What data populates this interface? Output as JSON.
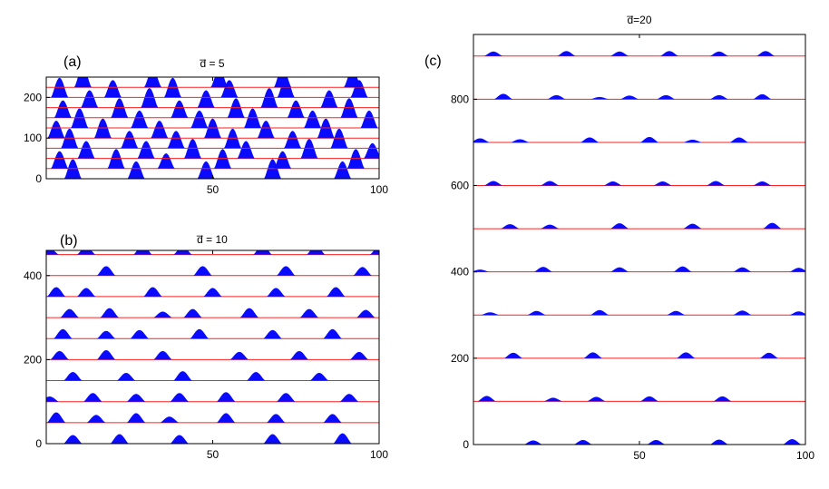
{
  "chart_data": [
    {
      "type": "area",
      "panel_label": "(a)",
      "title": "d̅ = 5",
      "xlim": [
        0,
        100
      ],
      "ylim": [
        0,
        250
      ],
      "x_ticks": [
        {
          "value": 50,
          "label": "50"
        },
        {
          "value": 100,
          "label": "100"
        }
      ],
      "y_ticks": [
        {
          "value": 0,
          "label": "0"
        },
        {
          "value": 100,
          "label": "100"
        },
        {
          "value": 200,
          "label": "200"
        }
      ],
      "colors": {
        "fill": "#0a0aff",
        "baseline": "#ff2020"
      },
      "traces": [
        {
          "offset": 0,
          "peaks": [
            {
              "x": 8,
              "h": 9
            },
            {
              "x": 27,
              "h": 8
            },
            {
              "x": 48,
              "h": 8
            },
            {
              "x": 68,
              "h": 9
            },
            {
              "x": 89,
              "h": 8
            }
          ]
        },
        {
          "offset": 25,
          "peaks": [
            {
              "x": 4,
              "h": 8
            },
            {
              "x": 21,
              "h": 9
            },
            {
              "x": 36,
              "h": 7
            },
            {
              "x": 53,
              "h": 9
            },
            {
              "x": 71,
              "h": 8
            },
            {
              "x": 93,
              "h": 9
            }
          ]
        },
        {
          "offset": 50,
          "peaks": [
            {
              "x": 12,
              "h": 8
            },
            {
              "x": 30,
              "h": 8
            },
            {
              "x": 44,
              "h": 9
            },
            {
              "x": 60,
              "h": 8
            },
            {
              "x": 79,
              "h": 9
            },
            {
              "x": 98,
              "h": 7
            }
          ]
        },
        {
          "offset": 75,
          "peaks": [
            {
              "x": 7,
              "h": 9
            },
            {
              "x": 25,
              "h": 8
            },
            {
              "x": 39,
              "h": 8
            },
            {
              "x": 56,
              "h": 9
            },
            {
              "x": 74,
              "h": 8
            },
            {
              "x": 88,
              "h": 9
            }
          ]
        },
        {
          "offset": 100,
          "peaks": [
            {
              "x": 3,
              "h": 8
            },
            {
              "x": 17,
              "h": 9
            },
            {
              "x": 34,
              "h": 8
            },
            {
              "x": 50,
              "h": 9
            },
            {
              "x": 66,
              "h": 8
            },
            {
              "x": 84,
              "h": 9
            }
          ]
        },
        {
          "offset": 125,
          "peaks": [
            {
              "x": 10,
              "h": 9
            },
            {
              "x": 28,
              "h": 8
            },
            {
              "x": 46,
              "h": 8
            },
            {
              "x": 62,
              "h": 9
            },
            {
              "x": 80,
              "h": 8
            },
            {
              "x": 97,
              "h": 8
            }
          ]
        },
        {
          "offset": 150,
          "peaks": [
            {
              "x": 5,
              "h": 8
            },
            {
              "x": 22,
              "h": 9
            },
            {
              "x": 40,
              "h": 8
            },
            {
              "x": 57,
              "h": 9
            },
            {
              "x": 75,
              "h": 8
            },
            {
              "x": 91,
              "h": 9
            }
          ]
        },
        {
          "offset": 175,
          "peaks": [
            {
              "x": 13,
              "h": 8
            },
            {
              "x": 31,
              "h": 9
            },
            {
              "x": 48,
              "h": 8
            },
            {
              "x": 67,
              "h": 9
            },
            {
              "x": 85,
              "h": 8
            }
          ]
        },
        {
          "offset": 200,
          "peaks": [
            {
              "x": 4,
              "h": 9
            },
            {
              "x": 20,
              "h": 8
            },
            {
              "x": 38,
              "h": 9
            },
            {
              "x": 55,
              "h": 8
            },
            {
              "x": 72,
              "h": 9
            },
            {
              "x": 94,
              "h": 8
            }
          ]
        },
        {
          "offset": 225,
          "peaks": [
            {
              "x": 11,
              "h": 9
            },
            {
              "x": 32,
              "h": 8
            },
            {
              "x": 52,
              "h": 8
            },
            {
              "x": 71,
              "h": 9
            },
            {
              "x": 92,
              "h": 8
            }
          ]
        }
      ]
    },
    {
      "type": "area",
      "panel_label": "(b)",
      "title": "d̅ = 10",
      "xlim": [
        0,
        100
      ],
      "ylim": [
        0,
        460
      ],
      "x_ticks": [
        {
          "value": 50,
          "label": "50"
        },
        {
          "value": 100,
          "label": "100"
        }
      ],
      "y_ticks": [
        {
          "value": 0,
          "label": "0"
        },
        {
          "value": 200,
          "label": "200"
        },
        {
          "value": 400,
          "label": "400"
        }
      ],
      "colors": {
        "fill": "#0a0aff",
        "baseline": "#ff2020"
      },
      "traces": [
        {
          "offset": 0,
          "peaks": [
            {
              "x": 8,
              "h": 10
            },
            {
              "x": 22,
              "h": 11
            },
            {
              "x": 40,
              "h": 10
            },
            {
              "x": 68,
              "h": 11
            },
            {
              "x": 89,
              "h": 12
            }
          ]
        },
        {
          "offset": 50,
          "peaks": [
            {
              "x": 3,
              "h": 12
            },
            {
              "x": 15,
              "h": 9
            },
            {
              "x": 27,
              "h": 11
            },
            {
              "x": 37,
              "h": 7
            },
            {
              "x": 54,
              "h": 11
            },
            {
              "x": 69,
              "h": 10
            },
            {
              "x": 86,
              "h": 10
            }
          ]
        },
        {
          "offset": 100,
          "peaks": [
            {
              "x": 1,
              "h": 6
            },
            {
              "x": 14,
              "h": 10
            },
            {
              "x": 27,
              "h": 9
            },
            {
              "x": 40,
              "h": 10
            },
            {
              "x": 54,
              "h": 11
            },
            {
              "x": 72,
              "h": 10
            },
            {
              "x": 91,
              "h": 9
            }
          ]
        },
        {
          "offset": 150,
          "peaks": [
            {
              "x": 8,
              "h": 10
            },
            {
              "x": 24,
              "h": 9
            },
            {
              "x": 41,
              "h": 11
            },
            {
              "x": 63,
              "h": 10
            },
            {
              "x": 82,
              "h": 9
            }
          ]
        },
        {
          "offset": 200,
          "peaks": [
            {
              "x": 4,
              "h": 10
            },
            {
              "x": 18,
              "h": 11
            },
            {
              "x": 35,
              "h": 10
            },
            {
              "x": 58,
              "h": 9
            },
            {
              "x": 76,
              "h": 10
            },
            {
              "x": 94,
              "h": 9
            }
          ]
        },
        {
          "offset": 250,
          "peaks": [
            {
              "x": 5,
              "h": 11
            },
            {
              "x": 18,
              "h": 9
            },
            {
              "x": 28,
              "h": 10
            },
            {
              "x": 46,
              "h": 11
            },
            {
              "x": 68,
              "h": 10
            },
            {
              "x": 86,
              "h": 11
            }
          ]
        },
        {
          "offset": 300,
          "peaks": [
            {
              "x": 7,
              "h": 10
            },
            {
              "x": 19,
              "h": 11
            },
            {
              "x": 35,
              "h": 7
            },
            {
              "x": 44,
              "h": 10
            },
            {
              "x": 61,
              "h": 11
            },
            {
              "x": 79,
              "h": 10
            },
            {
              "x": 96,
              "h": 9
            }
          ]
        },
        {
          "offset": 350,
          "peaks": [
            {
              "x": 3,
              "h": 11
            },
            {
              "x": 12,
              "h": 10
            },
            {
              "x": 32,
              "h": 11
            },
            {
              "x": 50,
              "h": 10
            },
            {
              "x": 69,
              "h": 10
            },
            {
              "x": 87,
              "h": 11
            }
          ]
        },
        {
          "offset": 400,
          "peaks": [
            {
              "x": 18,
              "h": 11
            },
            {
              "x": 47,
              "h": 11
            },
            {
              "x": 72,
              "h": 11
            },
            {
              "x": 95,
              "h": 10
            }
          ]
        },
        {
          "offset": 450,
          "peaks": [
            {
              "x": 1,
              "h": 7
            },
            {
              "x": 12,
              "h": 9
            },
            {
              "x": 29,
              "h": 11
            },
            {
              "x": 41,
              "h": 9
            },
            {
              "x": 65,
              "h": 11
            },
            {
              "x": 81,
              "h": 10
            },
            {
              "x": 100,
              "h": 9
            }
          ]
        }
      ]
    },
    {
      "type": "area",
      "panel_label": "(c)",
      "title": "d̅=20",
      "xlim": [
        0,
        100
      ],
      "ylim": [
        0,
        950
      ],
      "x_ticks": [
        {
          "value": 50,
          "label": "50"
        },
        {
          "value": 100,
          "label": "100"
        }
      ],
      "y_ticks": [
        {
          "value": 0,
          "label": "0"
        },
        {
          "value": 200,
          "label": "200"
        },
        {
          "value": 400,
          "label": "400"
        },
        {
          "value": 600,
          "label": "600"
        },
        {
          "value": 800,
          "label": "800"
        }
      ],
      "colors": {
        "fill": "#0a0aff",
        "baseline": "#ff2020"
      },
      "traces": [
        {
          "offset": 0,
          "peaks": [
            {
              "x": 18,
              "h": 9
            },
            {
              "x": 33,
              "h": 10
            },
            {
              "x": 55,
              "h": 10
            },
            {
              "x": 74,
              "h": 11
            },
            {
              "x": 96,
              "h": 12
            }
          ]
        },
        {
          "offset": 100,
          "peaks": [
            {
              "x": 4,
              "h": 12
            },
            {
              "x": 24,
              "h": 8
            },
            {
              "x": 37,
              "h": 10
            },
            {
              "x": 53,
              "h": 11
            },
            {
              "x": 75,
              "h": 11
            }
          ]
        },
        {
          "offset": 200,
          "peaks": [
            {
              "x": 12,
              "h": 12
            },
            {
              "x": 36,
              "h": 13
            },
            {
              "x": 64,
              "h": 13
            },
            {
              "x": 89,
              "h": 12
            }
          ]
        },
        {
          "offset": 300,
          "peaks": [
            {
              "x": 5,
              "h": 6
            },
            {
              "x": 19,
              "h": 9
            },
            {
              "x": 38,
              "h": 11
            },
            {
              "x": 61,
              "h": 9
            },
            {
              "x": 81,
              "h": 10
            },
            {
              "x": 98,
              "h": 8
            }
          ]
        },
        {
          "offset": 400,
          "peaks": [
            {
              "x": 2,
              "h": 5
            },
            {
              "x": 21,
              "h": 11
            },
            {
              "x": 44,
              "h": 10
            },
            {
              "x": 63,
              "h": 12
            },
            {
              "x": 81,
              "h": 10
            },
            {
              "x": 98,
              "h": 9
            }
          ]
        },
        {
          "offset": 500,
          "peaks": [
            {
              "x": 11,
              "h": 10
            },
            {
              "x": 23,
              "h": 9
            },
            {
              "x": 44,
              "h": 12
            },
            {
              "x": 66,
              "h": 11
            },
            {
              "x": 90,
              "h": 13
            }
          ]
        },
        {
          "offset": 600,
          "peaks": [
            {
              "x": 6,
              "h": 10
            },
            {
              "x": 23,
              "h": 10
            },
            {
              "x": 42,
              "h": 9
            },
            {
              "x": 57,
              "h": 9
            },
            {
              "x": 73,
              "h": 10
            },
            {
              "x": 87,
              "h": 9
            }
          ]
        },
        {
          "offset": 700,
          "peaks": [
            {
              "x": 2,
              "h": 9
            },
            {
              "x": 14,
              "h": 7
            },
            {
              "x": 35,
              "h": 11
            },
            {
              "x": 53,
              "h": 12
            },
            {
              "x": 66,
              "h": 6
            },
            {
              "x": 80,
              "h": 11
            }
          ]
        },
        {
          "offset": 800,
          "peaks": [
            {
              "x": 9,
              "h": 12
            },
            {
              "x": 25,
              "h": 9
            },
            {
              "x": 38,
              "h": 5
            },
            {
              "x": 47,
              "h": 8
            },
            {
              "x": 58,
              "h": 9
            },
            {
              "x": 74,
              "h": 9
            },
            {
              "x": 87,
              "h": 11
            }
          ]
        },
        {
          "offset": 900,
          "peaks": [
            {
              "x": 6,
              "h": 10
            },
            {
              "x": 28,
              "h": 11
            },
            {
              "x": 44,
              "h": 10
            },
            {
              "x": 59,
              "h": 11
            },
            {
              "x": 74,
              "h": 10
            },
            {
              "x": 88,
              "h": 11
            }
          ]
        }
      ]
    }
  ]
}
